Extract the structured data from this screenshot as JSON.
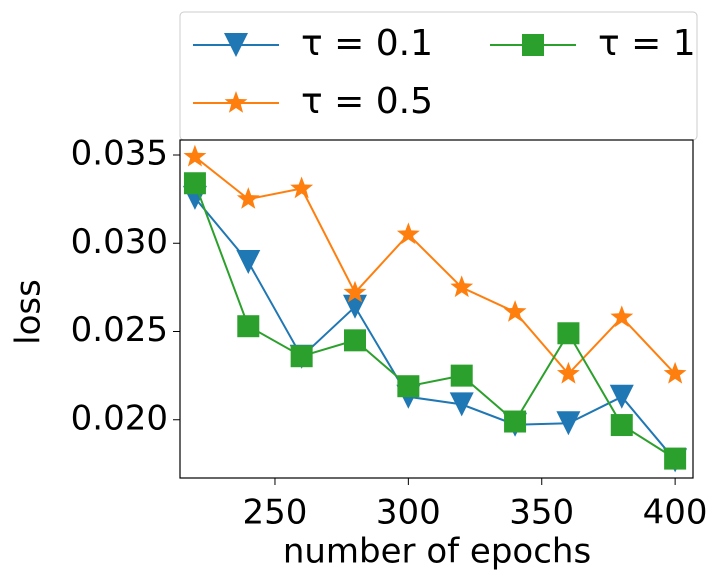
{
  "chart_data": {
    "type": "line",
    "x_label": "number of epochs",
    "y_label": "loss",
    "x": [
      220,
      240,
      260,
      280,
      300,
      320,
      340,
      360,
      380,
      400
    ],
    "series": [
      {
        "name": "τ = 0.1",
        "color": "#1f77b4",
        "marker": "triangle-down",
        "values": [
          0.03257,
          0.02894,
          0.02357,
          0.0264,
          0.0213,
          0.02087,
          0.01972,
          0.0198,
          0.0213,
          0.0177
        ]
      },
      {
        "name": "τ = 0.5",
        "color": "#ff7f0e",
        "marker": "star",
        "values": [
          0.0349,
          0.0325,
          0.0331,
          0.0272,
          0.0305,
          0.0275,
          0.0261,
          0.0226,
          0.0258,
          0.0226
        ]
      },
      {
        "name": "τ = 1",
        "color": "#2ca02c",
        "marker": "square",
        "values": [
          0.0334,
          0.0253,
          0.0236,
          0.0245,
          0.0219,
          0.0225,
          0.0199,
          0.0249,
          0.0197,
          0.0178
        ]
      }
    ],
    "xlim": [
      214.4,
      406.7
    ],
    "xticks": [
      250,
      300,
      350,
      400
    ],
    "ylim": [
      0.0167,
      0.03585
    ],
    "yticks": [
      {
        "value": 0.02,
        "label": "0.020"
      },
      0.025,
      {
        "value": 0.03,
        "label": "0.030"
      },
      0.035
    ],
    "legend": "top",
    "legend_columns": 2,
    "grid": false
  }
}
